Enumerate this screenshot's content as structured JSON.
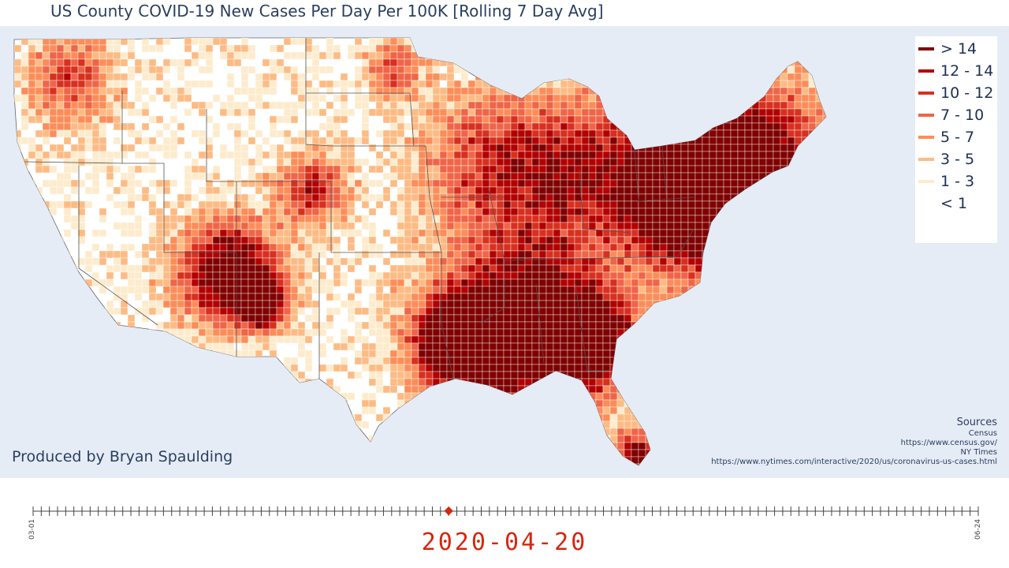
{
  "title": "US County COVID-19 New Cases Per Day Per 100K [Rolling 7 Day Avg]",
  "credit": "Produced by Bryan Spaulding",
  "sources": {
    "heading": "Sources",
    "lines": [
      "Census",
      "https://www.census.gov/",
      "NY Times",
      "https://www.nytimes.com/interactive/2020/us/coronavirus-us-cases.html"
    ]
  },
  "legend": {
    "items": [
      {
        "label": "> 14",
        "color": "#7f0000"
      },
      {
        "label": "12 - 14",
        "color": "#b30000"
      },
      {
        "label": "10 - 12",
        "color": "#d7301f"
      },
      {
        "label": "7 - 10",
        "color": "#ef6548"
      },
      {
        "label": "5 - 7",
        "color": "#fc8d59"
      },
      {
        "label": "3 - 5",
        "color": "#fdbb84"
      },
      {
        "label": "1 - 3",
        "color": "#fdebcd"
      },
      {
        "label": "< 1",
        "color": "#ffffff"
      }
    ]
  },
  "colors": {
    "background": "#e5ecf6",
    "land": "#ffffff",
    "border": "#555555",
    "accent": "#d6260f"
  },
  "slider": {
    "start_label": "03-01",
    "end_label": "06-24",
    "current_date": "2020-04-20",
    "tick_count": 117,
    "current_fraction": 0.4397
  }
}
